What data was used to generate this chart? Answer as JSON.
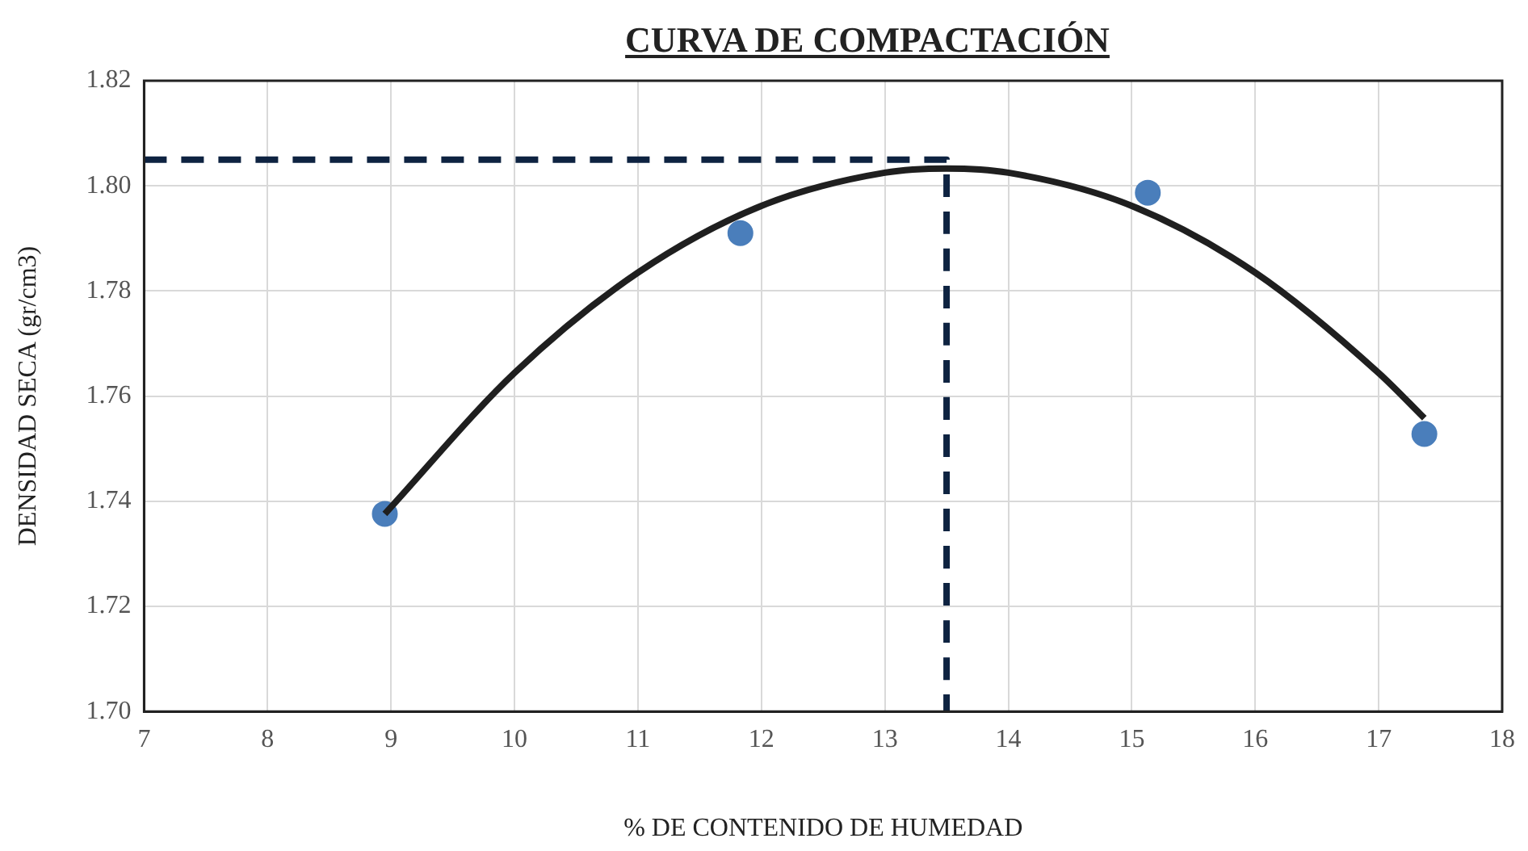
{
  "chart_data": {
    "type": "scatter",
    "title": "CURVA DE COMPACTACIÓN",
    "xlabel": "% DE CONTENIDO DE HUMEDAD",
    "ylabel": "DENSIDAD SECA (gr/cm3)",
    "xlim": [
      7,
      18
    ],
    "xticks": [
      7,
      8,
      9,
      10,
      11,
      12,
      13,
      14,
      15,
      16,
      17,
      18
    ],
    "ylim": [
      1.7,
      1.82
    ],
    "yticks": [
      {
        "value": 1.7,
        "label": "1.70"
      },
      1.72,
      1.74,
      1.76,
      1.78,
      {
        "value": 1.8,
        "label": "1.80"
      },
      1.82
    ],
    "grid": true,
    "legend": false,
    "series": [
      {
        "type": "line",
        "color": "#0e2341",
        "line_style": "dashed",
        "marker": "none",
        "x": [
          7,
          13.5,
          13.5
        ],
        "values": [
          1.805,
          1.805,
          1.7
        ]
      },
      {
        "type": "line",
        "color": "#1f1f1f",
        "line_style": "solid",
        "marker": "none",
        "x": [
          8.95,
          10,
          11,
          12,
          13,
          13.5,
          14,
          15,
          16,
          17,
          17.37
        ],
        "values": [
          1.7376,
          1.7644,
          1.7835,
          1.7962,
          1.8025,
          1.8033,
          1.8025,
          1.7962,
          1.7835,
          1.7644,
          1.7558
        ]
      },
      {
        "color": "#4a7ebb",
        "marker": "circle",
        "x": [
          8.95,
          11.83,
          15.13,
          17.37
        ],
        "values": [
          1.7376,
          1.791,
          1.7987,
          1.7528
        ]
      }
    ]
  }
}
